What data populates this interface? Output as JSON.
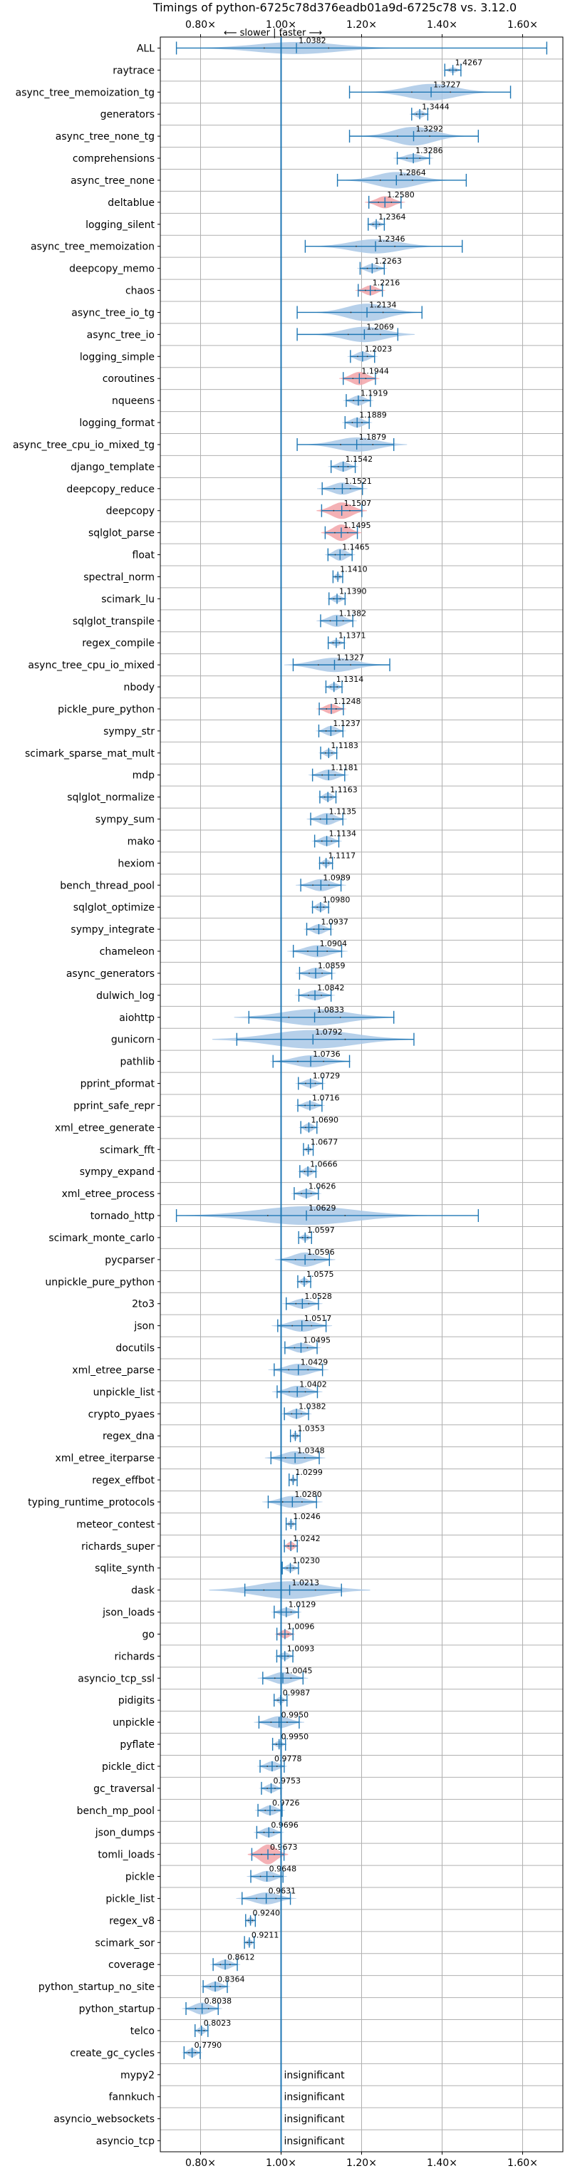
{
  "chart_data": {
    "type": "violin",
    "title": "Timings of python-6725c78d376eadb01a9d-6725c78 vs. 3.12.0",
    "direction_note": "⟵ slower | faster ⟶",
    "xlim": [
      0.7,
      1.7
    ],
    "xticks": [
      0.8,
      1.0,
      1.2,
      1.4,
      1.6
    ],
    "xtick_labels": [
      "0.80×",
      "1.00×",
      "1.20×",
      "1.40×",
      "1.60×"
    ],
    "reference_line": 1.0,
    "grid": true,
    "colors": {
      "violin": "#a9c8e6",
      "slower": "#f2a3a8",
      "line": "#1f77b4",
      "grid": "#b0b0b0"
    },
    "insignificant_label": "insignificant",
    "benchmarks": [
      {
        "name": "ALL",
        "value": 1.0382,
        "label": "1.0382",
        "spread": 0.1,
        "width": 0.55,
        "whisker": [
          0.74,
          1.66
        ]
      },
      {
        "name": "raytrace",
        "value": 1.4267,
        "label": "1.4267",
        "spread": 0.01,
        "width": 0.25
      },
      {
        "name": "async_tree_memoization_tg",
        "value": 1.3727,
        "label": "1.3727",
        "spread": 0.06,
        "width": 0.75,
        "whisker": [
          1.17,
          1.57
        ]
      },
      {
        "name": "generators",
        "value": 1.3444,
        "label": "1.3444",
        "spread": 0.01,
        "width": 0.35
      },
      {
        "name": "async_tree_none_tg",
        "value": 1.3292,
        "label": "1.3292",
        "spread": 0.05,
        "width": 0.85,
        "whisker": [
          1.17,
          1.49
        ]
      },
      {
        "name": "comprehensions",
        "value": 1.3286,
        "label": "1.3286",
        "spread": 0.02,
        "width": 0.4
      },
      {
        "name": "async_tree_none",
        "value": 1.2864,
        "label": "1.2864",
        "spread": 0.05,
        "width": 0.75,
        "whisker": [
          1.14,
          1.46
        ]
      },
      {
        "name": "deltablue",
        "value": 1.258,
        "label": "1.2580",
        "spread": 0.02,
        "width": 0.55,
        "red": true
      },
      {
        "name": "logging_silent",
        "value": 1.2364,
        "label": "1.2364",
        "spread": 0.01,
        "width": 0.3
      },
      {
        "name": "async_tree_memoization",
        "value": 1.2346,
        "label": "1.2346",
        "spread": 0.06,
        "width": 0.65,
        "whisker": [
          1.06,
          1.45
        ]
      },
      {
        "name": "deepcopy_memo",
        "value": 1.2263,
        "label": "1.2263",
        "spread": 0.015,
        "width": 0.4
      },
      {
        "name": "chaos",
        "value": 1.2216,
        "label": "1.2216",
        "spread": 0.015,
        "width": 0.45,
        "red": true
      },
      {
        "name": "async_tree_io_tg",
        "value": 1.2134,
        "label": "1.2134",
        "spread": 0.05,
        "width": 0.8,
        "whisker": [
          1.04,
          1.35
        ]
      },
      {
        "name": "async_tree_io",
        "value": 1.2069,
        "label": "1.2069",
        "spread": 0.05,
        "width": 0.7,
        "whisker": [
          1.04,
          1.29
        ]
      },
      {
        "name": "logging_simple",
        "value": 1.2023,
        "label": "1.2023",
        "spread": 0.015,
        "width": 0.45
      },
      {
        "name": "coroutines",
        "value": 1.1944,
        "label": "1.1944",
        "spread": 0.02,
        "width": 0.6,
        "red": true
      },
      {
        "name": "nqueens",
        "value": 1.1919,
        "label": "1.1919",
        "spread": 0.015,
        "width": 0.45
      },
      {
        "name": "logging_format",
        "value": 1.1889,
        "label": "1.1889",
        "spread": 0.015,
        "width": 0.45
      },
      {
        "name": "async_tree_cpu_io_mixed_tg",
        "value": 1.1879,
        "label": "1.1879",
        "spread": 0.05,
        "width": 0.65,
        "whisker": [
          1.04,
          1.28
        ]
      },
      {
        "name": "django_template",
        "value": 1.1542,
        "label": "1.1542",
        "spread": 0.015,
        "width": 0.45
      },
      {
        "name": "deepcopy_reduce",
        "value": 1.1521,
        "label": "1.1521",
        "spread": 0.025,
        "width": 0.55
      },
      {
        "name": "deepcopy",
        "value": 1.1507,
        "label": "1.1507",
        "spread": 0.025,
        "width": 0.75,
        "red": true
      },
      {
        "name": "sqlglot_parse",
        "value": 1.1495,
        "label": "1.1495",
        "spread": 0.02,
        "width": 0.75,
        "red": true
      },
      {
        "name": "float",
        "value": 1.1465,
        "label": "1.1465",
        "spread": 0.015,
        "width": 0.55
      },
      {
        "name": "spectral_norm",
        "value": 1.141,
        "label": "1.1410",
        "spread": 0.006,
        "width": 0.3
      },
      {
        "name": "scimark_lu",
        "value": 1.139,
        "label": "1.1390",
        "spread": 0.01,
        "width": 0.35
      },
      {
        "name": "sqlglot_transpile",
        "value": 1.1382,
        "label": "1.1382",
        "spread": 0.02,
        "width": 0.55
      },
      {
        "name": "regex_compile",
        "value": 1.1371,
        "label": "1.1371",
        "spread": 0.01,
        "width": 0.3
      },
      {
        "name": "async_tree_cpu_io_mixed",
        "value": 1.1327,
        "label": "1.1327",
        "spread": 0.05,
        "width": 0.65,
        "whisker": [
          1.03,
          1.27
        ]
      },
      {
        "name": "nbody",
        "value": 1.1314,
        "label": "1.1314",
        "spread": 0.01,
        "width": 0.35
      },
      {
        "name": "pickle_pure_python",
        "value": 1.1248,
        "label": "1.1248",
        "spread": 0.015,
        "width": 0.45,
        "red": true
      },
      {
        "name": "sympy_str",
        "value": 1.1237,
        "label": "1.1237",
        "spread": 0.015,
        "width": 0.45
      },
      {
        "name": "scimark_sparse_mat_mult",
        "value": 1.1183,
        "label": "1.1183",
        "spread": 0.01,
        "width": 0.35
      },
      {
        "name": "mdp",
        "value": 1.1181,
        "label": "1.1181",
        "spread": 0.02,
        "width": 0.5
      },
      {
        "name": "sqlglot_normalize",
        "value": 1.1163,
        "label": "1.1163",
        "spread": 0.01,
        "width": 0.4
      },
      {
        "name": "sympy_sum",
        "value": 1.1135,
        "label": "1.1135",
        "spread": 0.02,
        "width": 0.55
      },
      {
        "name": "mako",
        "value": 1.1134,
        "label": "1.1134",
        "spread": 0.015,
        "width": 0.45
      },
      {
        "name": "hexiom",
        "value": 1.1117,
        "label": "1.1117",
        "spread": 0.008,
        "width": 0.35
      },
      {
        "name": "bench_thread_pool",
        "value": 1.0989,
        "label": "1.0989",
        "spread": 0.025,
        "width": 0.55
      },
      {
        "name": "sqlglot_optimize",
        "value": 1.098,
        "label": "1.0980",
        "spread": 0.01,
        "width": 0.4
      },
      {
        "name": "sympy_integrate",
        "value": 1.0937,
        "label": "1.0937",
        "spread": 0.015,
        "width": 0.45
      },
      {
        "name": "chameleon",
        "value": 1.0904,
        "label": "1.0904",
        "spread": 0.03,
        "width": 0.55
      },
      {
        "name": "async_generators",
        "value": 1.0859,
        "label": "1.0859",
        "spread": 0.02,
        "width": 0.5
      },
      {
        "name": "dulwich_log",
        "value": 1.0842,
        "label": "1.0842",
        "spread": 0.02,
        "width": 0.45
      },
      {
        "name": "aiohttp",
        "value": 1.0833,
        "label": "1.0833",
        "spread": 0.08,
        "width": 0.75,
        "whisker": [
          0.92,
          1.28
        ]
      },
      {
        "name": "gunicorn",
        "value": 1.0792,
        "label": "1.0792",
        "spread": 0.1,
        "width": 0.85,
        "whisker": [
          0.89,
          1.33
        ]
      },
      {
        "name": "pathlib",
        "value": 1.0736,
        "label": "1.0736",
        "spread": 0.04,
        "width": 0.55,
        "whisker": [
          0.98,
          1.17
        ]
      },
      {
        "name": "pprint_pformat",
        "value": 1.0729,
        "label": "1.0729",
        "spread": 0.015,
        "width": 0.4
      },
      {
        "name": "pprint_safe_repr",
        "value": 1.0716,
        "label": "1.0716",
        "spread": 0.015,
        "width": 0.4
      },
      {
        "name": "xml_etree_generate",
        "value": 1.069,
        "label": "1.0690",
        "spread": 0.01,
        "width": 0.4
      },
      {
        "name": "scimark_fft",
        "value": 1.0677,
        "label": "1.0677",
        "spread": 0.006,
        "width": 0.25
      },
      {
        "name": "sympy_expand",
        "value": 1.0666,
        "label": "1.0666",
        "spread": 0.01,
        "width": 0.4
      },
      {
        "name": "xml_etree_process",
        "value": 1.0626,
        "label": "1.0626",
        "spread": 0.015,
        "width": 0.4
      },
      {
        "name": "tornado_http",
        "value": 1.0629,
        "label": "1.0629",
        "spread": 0.12,
        "width": 0.85,
        "whisker": [
          0.74,
          1.49
        ]
      },
      {
        "name": "scimark_monte_carlo",
        "value": 1.0597,
        "label": "1.0597",
        "spread": 0.008,
        "width": 0.3
      },
      {
        "name": "pycparser",
        "value": 1.0596,
        "label": "1.0596",
        "spread": 0.03,
        "width": 0.65,
        "whisker": [
          1.0,
          1.12
        ]
      },
      {
        "name": "unpickle_pure_python",
        "value": 1.0575,
        "label": "1.0575",
        "spread": 0.008,
        "width": 0.35
      },
      {
        "name": "2to3",
        "value": 1.0528,
        "label": "1.0528",
        "spread": 0.02,
        "width": 0.45
      },
      {
        "name": "json",
        "value": 1.0517,
        "label": "1.0517",
        "spread": 0.03,
        "width": 0.55
      },
      {
        "name": "docutils",
        "value": 1.0495,
        "label": "1.0495",
        "spread": 0.02,
        "width": 0.45
      },
      {
        "name": "xml_etree_parse",
        "value": 1.0429,
        "label": "1.0429",
        "spread": 0.03,
        "width": 0.55
      },
      {
        "name": "unpickle_list",
        "value": 1.0402,
        "label": "1.0402",
        "spread": 0.025,
        "width": 0.55
      },
      {
        "name": "crypto_pyaes",
        "value": 1.0382,
        "label": "1.0382",
        "spread": 0.015,
        "width": 0.45
      },
      {
        "name": "regex_dna",
        "value": 1.0353,
        "label": "1.0353",
        "spread": 0.006,
        "width": 0.3
      },
      {
        "name": "xml_etree_iterparse",
        "value": 1.0348,
        "label": "1.0348",
        "spread": 0.03,
        "width": 0.6
      },
      {
        "name": "regex_effbot",
        "value": 1.0299,
        "label": "1.0299",
        "spread": 0.005,
        "width": 0.25
      },
      {
        "name": "typing_runtime_protocols",
        "value": 1.028,
        "label": "1.0280",
        "spread": 0.03,
        "width": 0.55
      },
      {
        "name": "meteor_contest",
        "value": 1.0246,
        "label": "1.0246",
        "spread": 0.006,
        "width": 0.3
      },
      {
        "name": "richards_super",
        "value": 1.0242,
        "label": "1.0242",
        "spread": 0.008,
        "width": 0.4,
        "red": true
      },
      {
        "name": "sqlite_synth",
        "value": 1.023,
        "label": "1.0230",
        "spread": 0.01,
        "width": 0.35
      },
      {
        "name": "dask",
        "value": 1.0213,
        "label": "1.0213",
        "spread": 0.08,
        "width": 0.8,
        "whisker": [
          0.91,
          1.15
        ]
      },
      {
        "name": "json_loads",
        "value": 1.0129,
        "label": "1.0129",
        "spread": 0.015,
        "width": 0.4
      },
      {
        "name": "go",
        "value": 1.0096,
        "label": "1.0096",
        "spread": 0.01,
        "width": 0.4,
        "red": true
      },
      {
        "name": "richards",
        "value": 1.0093,
        "label": "1.0093",
        "spread": 0.01,
        "width": 0.35
      },
      {
        "name": "asyncio_tcp_ssl",
        "value": 1.0045,
        "label": "1.0045",
        "spread": 0.025,
        "width": 0.55
      },
      {
        "name": "pidigits",
        "value": 0.9987,
        "label": "0.9987",
        "spread": 0.008,
        "width": 0.3
      },
      {
        "name": "unpickle",
        "value": 0.995,
        "label": "0.9950",
        "spread": 0.025,
        "width": 0.55
      },
      {
        "name": "pyflate",
        "value": 0.995,
        "label": "0.9950",
        "spread": 0.008,
        "width": 0.3
      },
      {
        "name": "pickle_dict",
        "value": 0.9778,
        "label": "0.9778",
        "spread": 0.015,
        "width": 0.45
      },
      {
        "name": "gc_traversal",
        "value": 0.9753,
        "label": "0.9753",
        "spread": 0.012,
        "width": 0.4
      },
      {
        "name": "bench_mp_pool",
        "value": 0.9726,
        "label": "0.9726",
        "spread": 0.015,
        "width": 0.45
      },
      {
        "name": "json_dumps",
        "value": 0.9696,
        "label": "0.9696",
        "spread": 0.015,
        "width": 0.45
      },
      {
        "name": "tomli_loads",
        "value": 0.9673,
        "label": "0.9673",
        "spread": 0.02,
        "width": 0.9,
        "red": true
      },
      {
        "name": "pickle",
        "value": 0.9648,
        "label": "0.9648",
        "spread": 0.02,
        "width": 0.5
      },
      {
        "name": "pickle_list",
        "value": 0.9631,
        "label": "0.9631",
        "spread": 0.03,
        "width": 0.55
      },
      {
        "name": "regex_v8",
        "value": 0.924,
        "label": "0.9240",
        "spread": 0.006,
        "width": 0.3
      },
      {
        "name": "scimark_sor",
        "value": 0.9211,
        "label": "0.9211",
        "spread": 0.006,
        "width": 0.3
      },
      {
        "name": "coverage",
        "value": 0.8612,
        "label": "0.8612",
        "spread": 0.015,
        "width": 0.45
      },
      {
        "name": "python_startup_no_site",
        "value": 0.8364,
        "label": "0.8364",
        "spread": 0.015,
        "width": 0.45
      },
      {
        "name": "python_startup",
        "value": 0.8038,
        "label": "0.8038",
        "spread": 0.02,
        "width": 0.55
      },
      {
        "name": "telco",
        "value": 0.8023,
        "label": "0.8023",
        "spread": 0.008,
        "width": 0.35
      },
      {
        "name": "create_gc_cycles",
        "value": 0.779,
        "label": "0.7790",
        "spread": 0.01,
        "width": 0.4
      },
      {
        "name": "mypy2",
        "insignificant": true
      },
      {
        "name": "fannkuch",
        "insignificant": true
      },
      {
        "name": "asyncio_websockets",
        "insignificant": true
      },
      {
        "name": "asyncio_tcp",
        "insignificant": true
      }
    ]
  }
}
